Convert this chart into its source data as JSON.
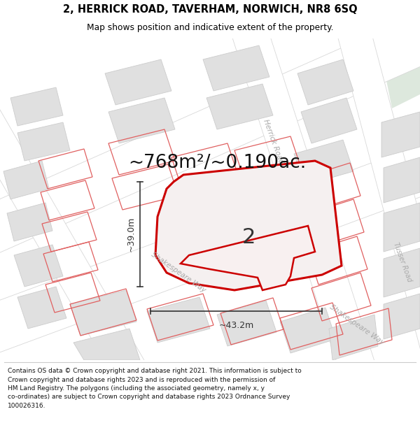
{
  "title_line1": "2, HERRICK ROAD, TAVERHAM, NORWICH, NR8 6SQ",
  "title_line2": "Map shows position and indicative extent of the property.",
  "area_text": "~768m²/~0.190ac.",
  "label_number": "2",
  "dim_width": "~43.2m",
  "dim_height": "~39.0m",
  "footer_text": "Contains OS data © Crown copyright and database right 2021. This information is subject to\nCrown copyright and database rights 2023 and is reproduced with the permission of\nHM Land Registry. The polygons (including the associated geometry, namely x, y\nco-ordinates) are subject to Crown copyright and database rights 2023 Ordnance Survey\n100026316.",
  "bg_map_color": "#f2f0f0",
  "bg_color": "#ffffff",
  "block_color": "#e0e0e0",
  "block_stroke": "#cccccc",
  "property_fill": "#f5f0f0",
  "property_stroke": "#cc0000",
  "road_label_color": "#aaaaaa",
  "green_color": "#dde8dd"
}
